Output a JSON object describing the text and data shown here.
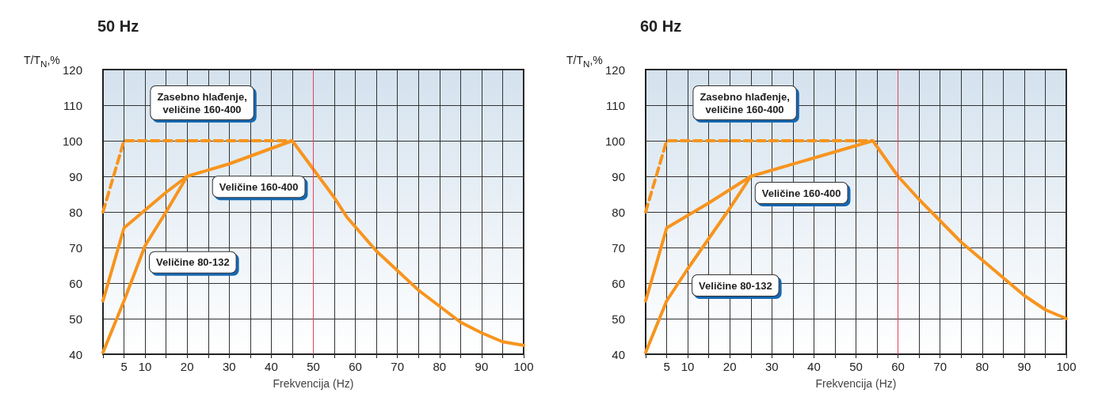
{
  "chart_data": [
    {
      "type": "line",
      "title": "50 Hz",
      "xlabel": "Frekvencija (Hz)",
      "ylabel": "T/T$_{N}$,%",
      "xlim": [
        0,
        100
      ],
      "xticks": [
        {
          "value": 0,
          "label": null
        },
        5,
        10,
        {
          "value": 15,
          "label": null
        },
        20,
        {
          "value": 25,
          "label": null
        },
        30,
        {
          "value": 35,
          "label": null
        },
        40,
        {
          "value": 45,
          "label": null
        },
        50,
        {
          "value": 55,
          "label": null
        },
        60,
        {
          "value": 65,
          "label": null
        },
        70,
        {
          "value": 75,
          "label": null
        },
        80,
        {
          "value": 85,
          "label": null
        },
        90,
        {
          "value": 95,
          "label": null
        },
        100
      ],
      "ylim": [
        40,
        120
      ],
      "yticks": [
        40,
        50,
        60,
        70,
        80,
        90,
        100,
        110,
        120
      ],
      "grid": true,
      "legend": false,
      "marker": "none",
      "series": [
        {
          "name": "Zasebno hlađenje,\nveličine 160-400",
          "color": "#f7941d",
          "line_style": "dashed",
          "x": [
            0,
            5,
            45
          ],
          "values": [
            80,
            100,
            100
          ]
        },
        {
          "name": "Veličine 160-400",
          "color": "#f7941d",
          "line_style": "solid",
          "x": [
            0,
            5,
            10,
            15,
            20,
            30,
            45,
            50,
            55,
            58,
            65,
            70,
            75,
            80,
            85,
            90,
            95,
            100
          ],
          "values": [
            55,
            75.5,
            80.5,
            85.5,
            90,
            93.5,
            100,
            92,
            84,
            78.5,
            69,
            63.5,
            58,
            53.5,
            49,
            46,
            43.5,
            42.5
          ]
        },
        {
          "name": "Veličine 80-132",
          "color": "#f7941d",
          "line_style": "solid",
          "x": [
            0,
            5,
            10,
            15,
            20
          ],
          "values": [
            40.5,
            55,
            70.5,
            80,
            90
          ]
        }
      ],
      "ref_lines": [
        {
          "axis": "x",
          "value": 50,
          "color": "#e8425a"
        }
      ]
    },
    {
      "type": "line",
      "title": "60 Hz",
      "xlabel": "Frekvencija (Hz)",
      "ylabel": "T/T$_{N}$,%",
      "xlim": [
        0,
        100
      ],
      "xticks": [
        {
          "value": 0,
          "label": null
        },
        5,
        10,
        {
          "value": 15,
          "label": null
        },
        20,
        {
          "value": 25,
          "label": null
        },
        30,
        {
          "value": 35,
          "label": null
        },
        40,
        {
          "value": 45,
          "label": null
        },
        50,
        {
          "value": 55,
          "label": null
        },
        60,
        {
          "value": 65,
          "label": null
        },
        70,
        {
          "value": 75,
          "label": null
        },
        80,
        {
          "value": 85,
          "label": null
        },
        90,
        {
          "value": 95,
          "label": null
        },
        100
      ],
      "ylim": [
        40,
        120
      ],
      "yticks": [
        40,
        50,
        60,
        70,
        80,
        90,
        100,
        110,
        120
      ],
      "grid": true,
      "legend": false,
      "marker": "none",
      "series": [
        {
          "name": "Zasebno hlađenje,\nveličine 160-400",
          "color": "#f7941d",
          "line_style": "dashed",
          "x": [
            0,
            5,
            54
          ],
          "values": [
            80,
            100,
            100
          ]
        },
        {
          "name": "Veličine 160-400",
          "color": "#f7941d",
          "line_style": "solid",
          "x": [
            0,
            5,
            10,
            15,
            25,
            54,
            60,
            65,
            70,
            75,
            80,
            85,
            90,
            95,
            100
          ],
          "values": [
            55,
            75.5,
            79,
            82.5,
            90,
            100,
            90,
            83.5,
            77.5,
            71.5,
            66.5,
            61.5,
            56.5,
            52.5,
            50
          ]
        },
        {
          "name": "Veličine 80-132",
          "color": "#f7941d",
          "line_style": "solid",
          "x": [
            0,
            5,
            10,
            15,
            20,
            25
          ],
          "values": [
            40.5,
            55,
            64,
            72.5,
            81,
            90
          ]
        }
      ],
      "ref_lines": [
        {
          "axis": "x",
          "value": 60,
          "color": "#e8425a"
        }
      ]
    }
  ]
}
